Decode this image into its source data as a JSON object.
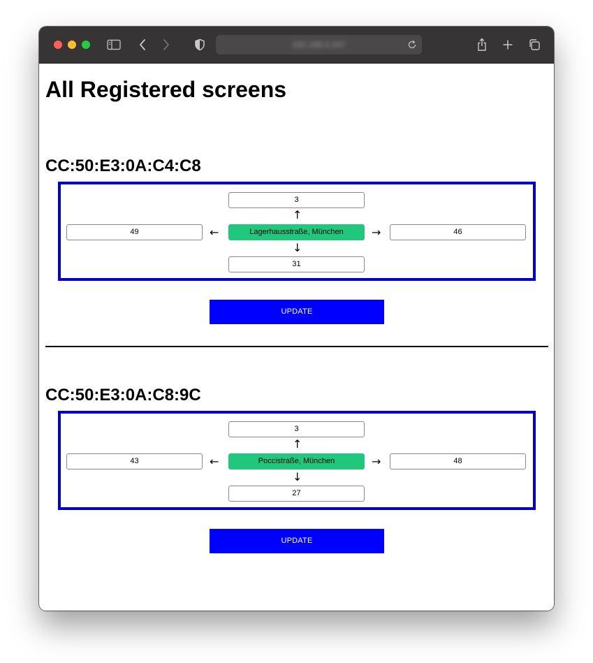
{
  "browser": {
    "url": "192.168.0.247"
  },
  "page": {
    "title": "All Registered screens"
  },
  "screens": [
    {
      "mac": "CC:50:E3:0A:C4:C8",
      "top": "3",
      "left": "49",
      "center": "Lagerhausstraße, München",
      "right": "46",
      "bottom": "31",
      "update_label": "UPDATE"
    },
    {
      "mac": "CC:50:E3:0A:C8:9C",
      "top": "3",
      "left": "43",
      "center": "Poccistraße, München",
      "right": "48",
      "bottom": "27",
      "update_label": "UPDATE"
    }
  ],
  "arrows": {
    "up": "↑",
    "down": "↓",
    "left": "←",
    "right": "→"
  },
  "colors": {
    "grid_border": "#0000cc",
    "center_field": "#21c77d",
    "update_button": "#0000ff"
  }
}
